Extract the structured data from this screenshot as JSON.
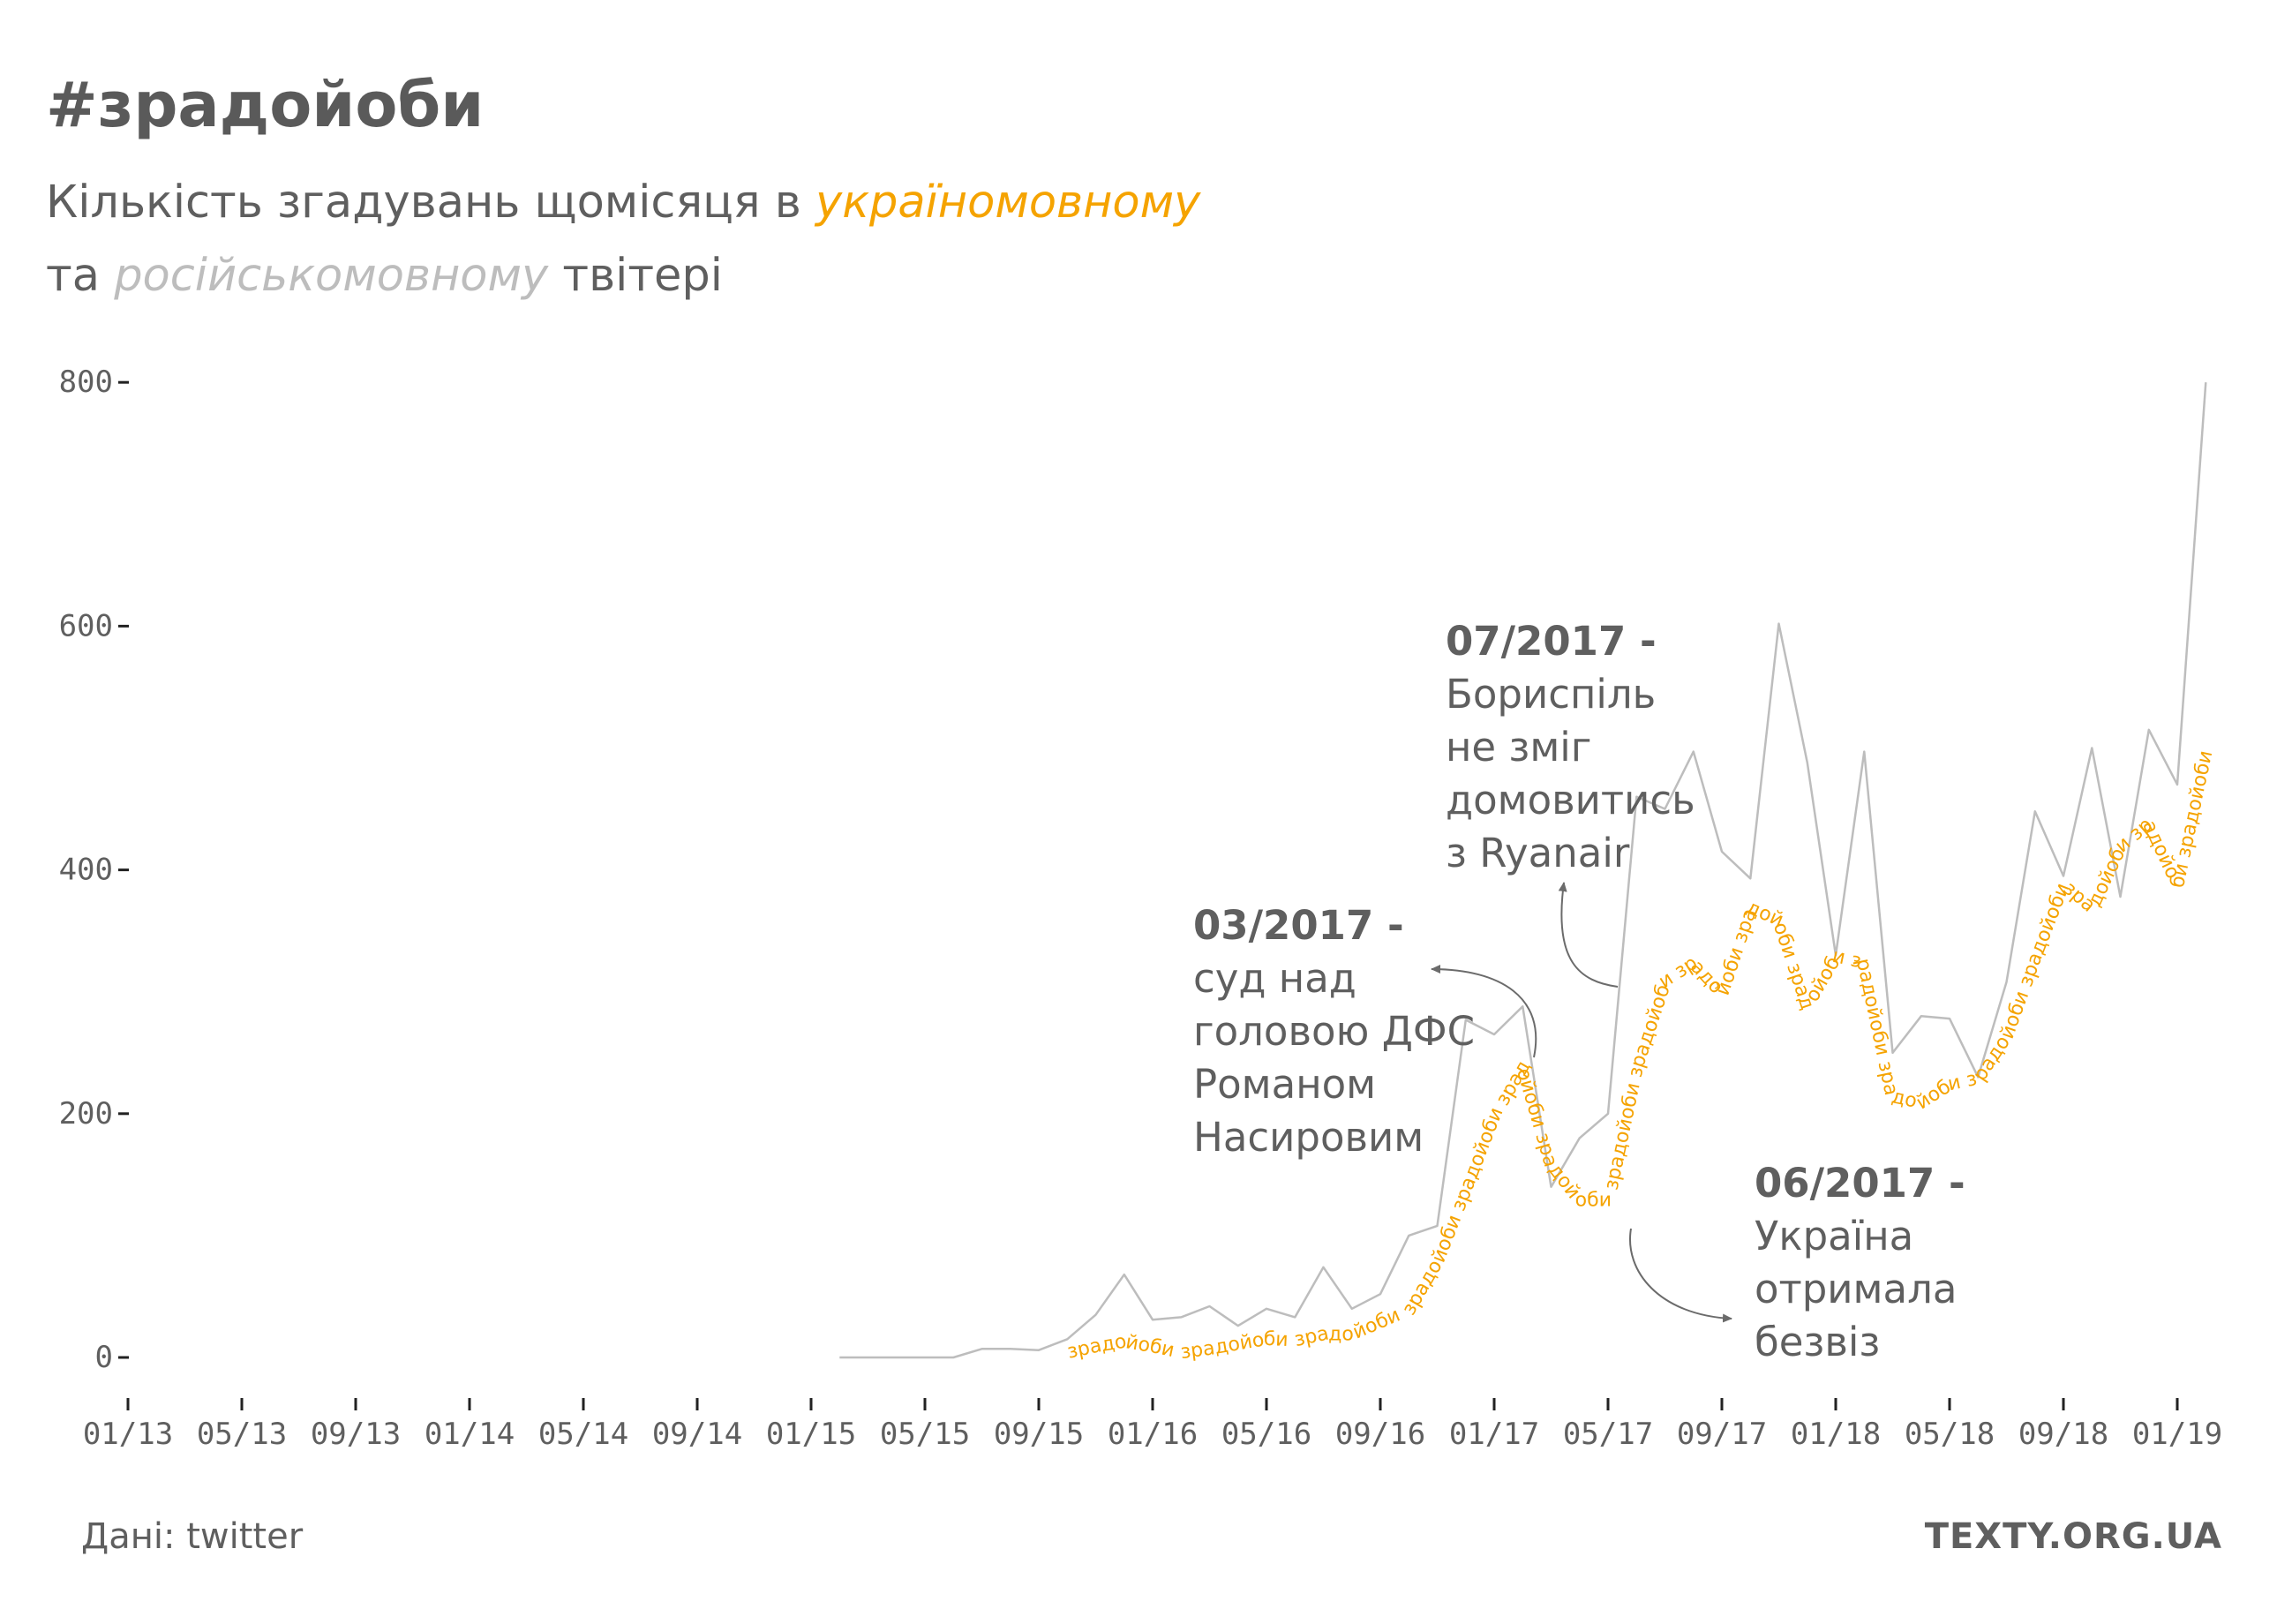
{
  "title": "#зрадойоби",
  "subtitle": {
    "part1": "Кількість згадувань щомісяця в ",
    "ukr_word": "україномовному",
    "part2": "та ",
    "rus_word": "російськомовному",
    "part3": " твітері"
  },
  "source": "Дані: twitter",
  "brand": "TEXTY.ORG.UA",
  "colors": {
    "ukrainian": "#f5a300",
    "russian": "#bdbdbd",
    "text": "#5f5f5f"
  },
  "chart_data": {
    "type": "line",
    "x_ticks": [
      "01/13",
      "05/13",
      "09/13",
      "01/14",
      "05/14",
      "09/14",
      "01/15",
      "05/15",
      "09/15",
      "01/16",
      "05/16",
      "09/16",
      "01/17",
      "05/17",
      "09/17",
      "01/18",
      "05/18",
      "09/18",
      "01/19"
    ],
    "y_ticks": [
      0,
      200,
      400,
      600,
      800
    ],
    "ylim": [
      0,
      800
    ],
    "xlim": [
      "2013-01",
      "2019-03"
    ],
    "grid": false,
    "series": [
      {
        "name": "російськомовному",
        "color": "#bdbdbd",
        "points": [
          [
            "2015-02",
            0
          ],
          [
            "2015-03",
            0
          ],
          [
            "2015-04",
            0
          ],
          [
            "2015-05",
            0
          ],
          [
            "2015-06",
            0
          ],
          [
            "2015-07",
            7
          ],
          [
            "2015-08",
            7
          ],
          [
            "2015-09",
            6
          ],
          [
            "2015-10",
            15
          ],
          [
            "2015-11",
            35
          ],
          [
            "2015-12",
            68
          ],
          [
            "2016-01",
            31
          ],
          [
            "2016-02",
            33
          ],
          [
            "2016-03",
            42
          ],
          [
            "2016-04",
            26
          ],
          [
            "2016-05",
            40
          ],
          [
            "2016-06",
            33
          ],
          [
            "2016-07",
            74
          ],
          [
            "2016-08",
            40
          ],
          [
            "2016-09",
            52
          ],
          [
            "2016-10",
            100
          ],
          [
            "2016-11",
            108
          ],
          [
            "2016-12",
            277
          ],
          [
            "2017-01",
            265
          ],
          [
            "2017-02",
            288
          ],
          [
            "2017-03",
            140
          ],
          [
            "2017-04",
            180
          ],
          [
            "2017-05",
            200
          ],
          [
            "2017-06",
            460
          ],
          [
            "2017-07",
            450
          ],
          [
            "2017-08",
            497
          ],
          [
            "2017-09",
            415
          ],
          [
            "2017-10",
            393
          ],
          [
            "2017-11",
            602
          ],
          [
            "2017-12",
            488
          ],
          [
            "2018-01",
            330
          ],
          [
            "2018-02",
            497
          ],
          [
            "2018-03",
            250
          ],
          [
            "2018-04",
            280
          ],
          [
            "2018-05",
            278
          ],
          [
            "2018-06",
            230
          ],
          [
            "2018-07",
            308
          ],
          [
            "2018-08",
            448
          ],
          [
            "2018-09",
            395
          ],
          [
            "2018-10",
            500
          ],
          [
            "2018-11",
            378
          ],
          [
            "2018-12",
            515
          ],
          [
            "2019-01",
            470
          ],
          [
            "2019-02",
            800
          ]
        ]
      },
      {
        "name": "україномовному",
        "color": "#f5a300",
        "points": [
          [
            "2015-10",
            5
          ],
          [
            "2015-11",
            10
          ],
          [
            "2015-12",
            14
          ],
          [
            "2016-01",
            10
          ],
          [
            "2016-02",
            5
          ],
          [
            "2016-03",
            8
          ],
          [
            "2016-04",
            12
          ],
          [
            "2016-05",
            16
          ],
          [
            "2016-06",
            15
          ],
          [
            "2016-07",
            20
          ],
          [
            "2016-08",
            20
          ],
          [
            "2016-09",
            30
          ],
          [
            "2016-10",
            40
          ],
          [
            "2016-11",
            80
          ],
          [
            "2016-12",
            140
          ],
          [
            "2017-01",
            200
          ],
          [
            "2017-02",
            240
          ],
          [
            "2017-03",
            160
          ],
          [
            "2017-04",
            130
          ],
          [
            "2017-05",
            130
          ],
          [
            "2017-06",
            240
          ],
          [
            "2017-07",
            310
          ],
          [
            "2017-08",
            325
          ],
          [
            "2017-09",
            300
          ],
          [
            "2017-10",
            370
          ],
          [
            "2017-11",
            360
          ],
          [
            "2017-12",
            290
          ],
          [
            "2018-01",
            330
          ],
          [
            "2018-02",
            325
          ],
          [
            "2018-03",
            215
          ],
          [
            "2018-04",
            210
          ],
          [
            "2018-05",
            225
          ],
          [
            "2018-06",
            230
          ],
          [
            "2018-07",
            265
          ],
          [
            "2018-08",
            330
          ],
          [
            "2018-09",
            390
          ],
          [
            "2018-10",
            370
          ],
          [
            "2018-11",
            420
          ],
          [
            "2018-12",
            440
          ],
          [
            "2019-01",
            390
          ],
          [
            "2019-02",
            500
          ]
        ]
      }
    ],
    "line_label": "зрадойоби",
    "annotations": [
      {
        "date": "03/2017",
        "dash": " -",
        "lines": [
          "суд над",
          "головою ДФС",
          "Романом",
          "Насировим"
        ]
      },
      {
        "date": "07/2017",
        "dash": " -",
        "lines": [
          "Бориспіль",
          "не зміг",
          "домовитись",
          "з Ryanair"
        ]
      },
      {
        "date": "06/2017",
        "dash": " -",
        "lines": [
          "Україна",
          "отримала",
          "безвіз"
        ]
      }
    ]
  }
}
